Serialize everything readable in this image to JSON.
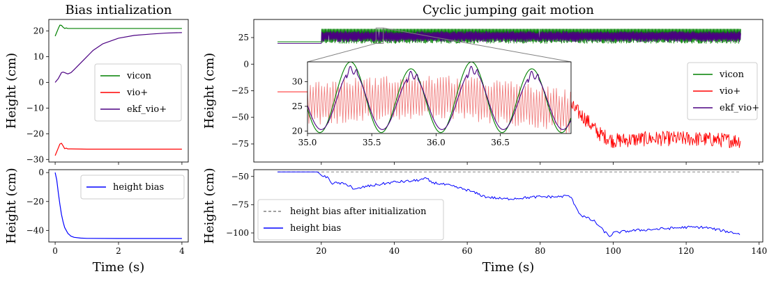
{
  "chart_data": [
    {
      "id": "bias-init",
      "type": "line",
      "title": "Bias intialization",
      "xlabel": "",
      "ylabel": "Height (cm)",
      "xlim": [
        -0.2,
        4.2
      ],
      "ylim": [
        -31,
        24.5
      ],
      "xticks": [
        0,
        2,
        4
      ],
      "yticks": [
        -30,
        -20,
        -10,
        0,
        10,
        20
      ],
      "ytick_labels": [
        "−30",
        "−20",
        "−10",
        "0",
        "10",
        "20"
      ],
      "legend": "center-right",
      "series": [
        {
          "name": "vicon",
          "color": "#008000",
          "x": [
            0,
            0.05,
            0.1,
            0.15,
            0.2,
            0.25,
            0.3,
            0.35,
            0.4,
            0.5,
            0.7,
            1,
            2,
            3,
            4
          ],
          "y": [
            18,
            19.5,
            21,
            22.3,
            22.2,
            21.5,
            21,
            21.2,
            21,
            21,
            21,
            21,
            21,
            21,
            21
          ]
        },
        {
          "name": "vio+",
          "color": "#ff0000",
          "x": [
            0,
            0.05,
            0.1,
            0.15,
            0.2,
            0.25,
            0.3,
            0.35,
            0.4,
            0.5,
            1,
            2,
            3,
            4
          ],
          "y": [
            -28.5,
            -27,
            -25.5,
            -24,
            -23.7,
            -24.7,
            -25.8,
            -25.6,
            -25.9,
            -25.9,
            -26,
            -26,
            -26,
            -26
          ]
        },
        {
          "name": "ekf_vio+",
          "color": "#4b0082",
          "x": [
            0,
            0.1,
            0.2,
            0.25,
            0.3,
            0.4,
            0.5,
            0.6,
            0.8,
            1.0,
            1.2,
            1.5,
            2.0,
            2.5,
            3.0,
            3.5,
            4.0
          ],
          "y": [
            0,
            1.5,
            3.8,
            4.0,
            3.8,
            3.3,
            3.8,
            5.0,
            7.5,
            10,
            12.5,
            15,
            17.2,
            18.3,
            18.8,
            19.2,
            19.4
          ]
        }
      ]
    },
    {
      "id": "bias-init-height",
      "type": "line",
      "title": "",
      "xlabel": "Time (s)",
      "ylabel": "Height (cm)",
      "xlim": [
        -0.2,
        4.2
      ],
      "ylim": [
        -48,
        2
      ],
      "xticks": [
        0,
        2,
        4
      ],
      "yticks": [
        -40,
        -20,
        0
      ],
      "ytick_labels": [
        "−40",
        "−20",
        "0"
      ],
      "legend": "top-right",
      "series": [
        {
          "name": "height bias",
          "color": "#0000ff",
          "x": [
            0,
            0.05,
            0.1,
            0.15,
            0.2,
            0.25,
            0.3,
            0.4,
            0.5,
            0.6,
            0.8,
            1,
            2,
            3,
            4
          ],
          "y": [
            0,
            -5,
            -14,
            -22,
            -29,
            -34,
            -38,
            -42,
            -44,
            -44.8,
            -45.3,
            -45.5,
            -45.6,
            -45.6,
            -45.6
          ]
        }
      ]
    },
    {
      "id": "cyclic-jumping",
      "type": "line",
      "title": "Cyclic jumping gait motion",
      "xlabel": "",
      "ylabel": "Height (cm)",
      "xlim": [
        1.5,
        141
      ],
      "ylim": [
        -92,
        42
      ],
      "xticks": [
        20,
        40,
        60,
        80,
        100,
        120,
        140
      ],
      "yticks": [
        -75,
        -50,
        -25,
        0,
        25
      ],
      "ytick_labels": [
        "−75",
        "−50",
        "−25",
        "0",
        "25"
      ],
      "legend": "center-right",
      "series": [
        {
          "name": "vicon",
          "color": "#008000",
          "t_start": 8,
          "t_end": 135,
          "hold_until": 20,
          "hold": 21,
          "low": 19.5,
          "high": 33
        },
        {
          "name": "vio+",
          "color": "#ff0000",
          "t_start": 8,
          "t_end": 135,
          "x": [
            8,
            20,
            35,
            50,
            65,
            80,
            88,
            92,
            96,
            100,
            110,
            120,
            135
          ],
          "y": [
            -26,
            -26,
            -28,
            -30,
            -32,
            -35,
            -38,
            -50,
            -65,
            -72,
            -70,
            -70,
            -72
          ],
          "osc_amp": 7
        },
        {
          "name": "ekf_vio+",
          "color": "#4b0082",
          "t_start": 8,
          "t_end": 135,
          "hold_until": 20,
          "hold": 19.5,
          "low": 21,
          "high": 31
        }
      ],
      "inset": {
        "xlim": [
          35,
          37.05
        ],
        "ylim": [
          19.5,
          34
        ],
        "xticks": [
          35.0,
          35.5,
          36.0,
          36.5
        ],
        "xtick_labels": [
          "35.0",
          "35.5",
          "36.0",
          "36.5"
        ],
        "yticks": [
          20,
          25,
          30
        ],
        "zoom_region": {
          "x": [
            35,
            37
          ],
          "y": [
            19.5,
            34
          ]
        },
        "vicon_period": 0.47,
        "vicon_center": 26.5,
        "vicon_amp": 6.8,
        "vio_center": 25.5,
        "vio_amp": 4.5,
        "vio_period": 0.022
      }
    },
    {
      "id": "height-bias",
      "type": "line",
      "title": "",
      "xlabel": "Time (s)",
      "ylabel": "Height (cm)",
      "xlim": [
        1.5,
        141
      ],
      "ylim": [
        -108,
        -44
      ],
      "xticks": [
        20,
        40,
        60,
        80,
        100,
        120,
        140
      ],
      "yticks": [
        -100,
        -75,
        -50
      ],
      "ytick_labels": [
        "−100",
        "−75",
        "−50"
      ],
      "legend": "bottom-left",
      "series": [
        {
          "name": "height bias after initialization",
          "color": "#808080",
          "dashed": true,
          "x": [
            8,
            135
          ],
          "y": [
            -46,
            -46
          ]
        },
        {
          "name": "height bias",
          "color": "#0000ff",
          "x": [
            8,
            19,
            20,
            21,
            22,
            23,
            25,
            28,
            29,
            32,
            36,
            40,
            45,
            49,
            50,
            55,
            60,
            65,
            70,
            75,
            80,
            85,
            88,
            89,
            91,
            93,
            95,
            97,
            99,
            100,
            105,
            110,
            115,
            120,
            125,
            130,
            135
          ],
          "y": [
            -46,
            -46,
            -49,
            -50,
            -52,
            -56,
            -56,
            -58,
            -62,
            -59,
            -57,
            -55,
            -54,
            -52,
            -55,
            -58,
            -62,
            -68,
            -70,
            -69,
            -68,
            -68,
            -67,
            -72,
            -84,
            -87,
            -90,
            -97,
            -103,
            -100,
            -98,
            -97,
            -96,
            -95,
            -95,
            -98,
            -101
          ],
          "jitter": 1.2
        }
      ]
    }
  ]
}
